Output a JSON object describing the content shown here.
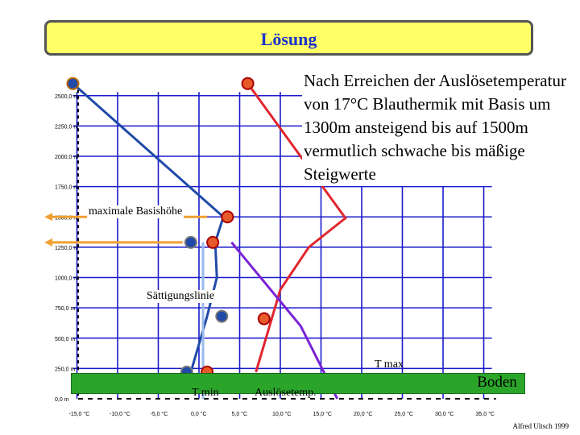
{
  "title": "Lösung",
  "note_text": "Nach Erreichen der Auslösetemperatur von 17°C Blauthermik mit Basis um 1300m ansteigend bis auf 1500m vermutlich schwache bis mäßige Steigwerte",
  "labels": {
    "max_base": "maximale Basishöhe",
    "saturation": "Sättigungslinie",
    "t_max": "T max",
    "t_min": "T min",
    "trigger": "Auslösetemp.",
    "ground": "Boden"
  },
  "credit": "Alfred Ultsch 1999",
  "axes": {
    "y_ticks": [
      "0,0",
      "250,0",
      "500,0",
      "750,0",
      "1000,0",
      "1250,0",
      "1500,0",
      "1750,0",
      "2000,0",
      "2250,0",
      "2500,0"
    ],
    "x_ticks": [
      "-15,0",
      "-10,0",
      "-5,0",
      "0,0",
      "5,0",
      "10,0",
      "15,0",
      "20,0",
      "25,0",
      "30,0",
      "35,0"
    ],
    "y_unit": "m",
    "x_unit": "°C"
  },
  "chart_data": {
    "type": "line",
    "xlabel": "",
    "ylabel": "",
    "xlim": [
      -20,
      40
    ],
    "ylim": [
      0,
      2600
    ],
    "grid": true,
    "series": [
      {
        "name": "",
        "color": "#1f4aa8",
        "x": [
          -15.5,
          3.0,
          2.0,
          2.2,
          1.0,
          -1.0
        ],
        "y": [
          2600,
          1500,
          1290,
          1000,
          680,
          220
        ]
      },
      {
        "name": "",
        "color": "#e0262e",
        "x": [
          6.0,
          18.0,
          13.5,
          10.0,
          7.0
        ],
        "y": [
          2600,
          1490,
          1250,
          900,
          220
        ]
      },
      {
        "name": "",
        "color": "#7a22d6",
        "x": [
          4.0,
          12.5,
          17.0
        ],
        "y": [
          1290,
          600,
          0
        ]
      },
      {
        "name": "",
        "color": "#99bbee",
        "x": [
          0.5,
          0.5
        ],
        "y": [
          1290,
          0
        ]
      }
    ],
    "points": [
      {
        "x": -15.5,
        "y": 2600,
        "color": "#1f4aa8",
        "edge": "#bb6600"
      },
      {
        "x": 6.0,
        "y": 2600,
        "color": "#e85a2a",
        "edge": "#aa0000"
      },
      {
        "x": 3.5,
        "y": 1500,
        "color": "#e85a2a",
        "edge": "#aa0000"
      },
      {
        "x": -1.0,
        "y": 1290,
        "color": "#1f4aa8",
        "edge": "#777777"
      },
      {
        "x": 1.7,
        "y": 1290,
        "color": "#e85a2a",
        "edge": "#aa0000"
      },
      {
        "x": 2.8,
        "y": 680,
        "color": "#1f4aa8",
        "edge": "#777777"
      },
      {
        "x": 8.0,
        "y": 660,
        "color": "#e85a2a",
        "edge": "#aa0000"
      },
      {
        "x": -1.5,
        "y": 220,
        "color": "#1f4aa8",
        "edge": "#777777"
      },
      {
        "x": 1.0,
        "y": 220,
        "color": "#e85a2a",
        "edge": "#aa0000"
      }
    ],
    "arrows": [
      {
        "x_from": 1.0,
        "x_to": -19.0,
        "y": 1500,
        "color": "#f0a030"
      },
      {
        "x_from": -2.0,
        "x_to": -19.0,
        "y": 1290,
        "color": "#f0a030"
      }
    ]
  }
}
